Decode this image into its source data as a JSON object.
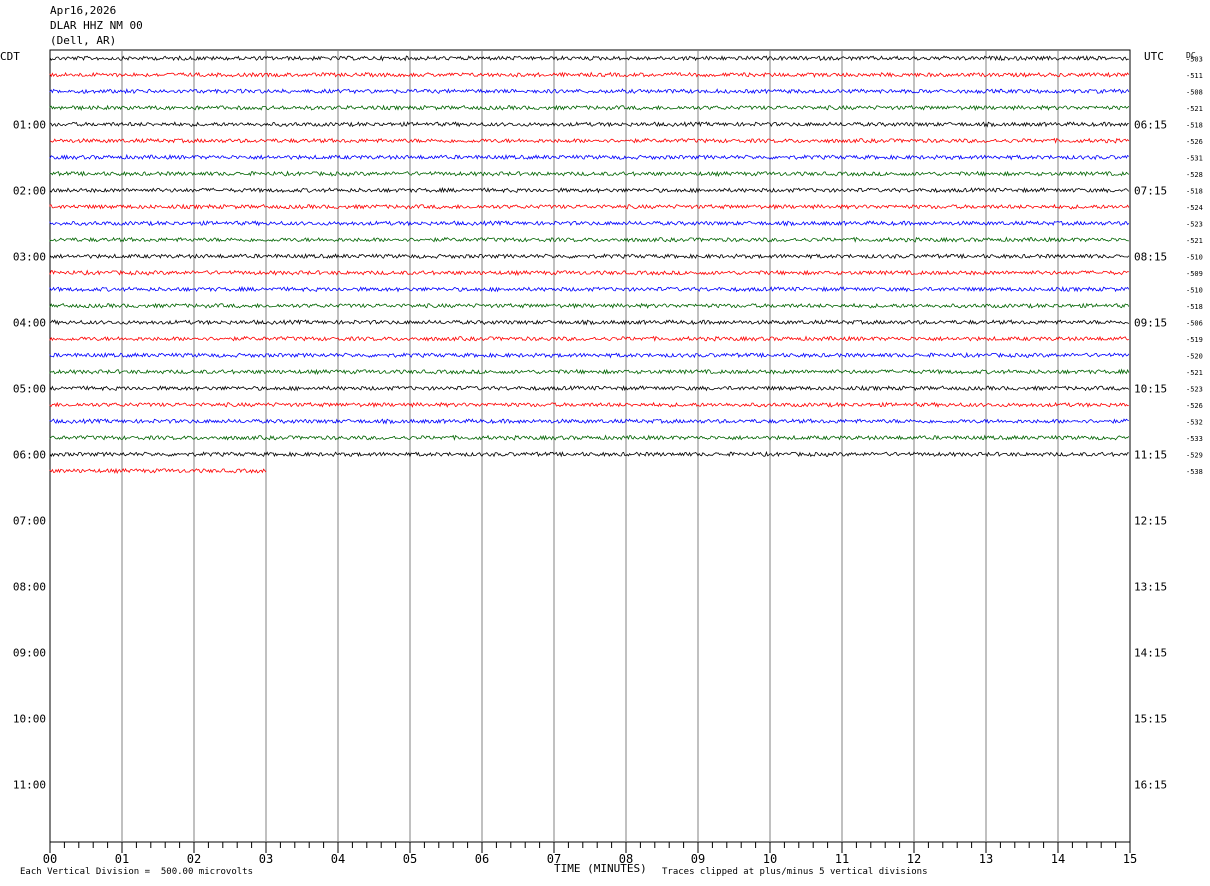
{
  "header": {
    "date": "Apr16,2026",
    "station": "DLAR HHZ NM 00",
    "location": "(Dell, AR)"
  },
  "chart_data": {
    "type": "line",
    "title": "",
    "left_timezone_label": "CDT",
    "right_timezone_label": "UTC",
    "dc_label": "DC",
    "left_hour_labels": [
      "01:00",
      "02:00",
      "03:00",
      "04:00",
      "05:00",
      "06:00",
      "07:00",
      "08:00",
      "09:00",
      "10:00",
      "11:00"
    ],
    "right_hour_labels": [
      "06:15",
      "07:15",
      "08:15",
      "09:15",
      "10:15",
      "11:15",
      "12:15",
      "13:15",
      "14:15",
      "15:15",
      "16:15"
    ],
    "x_ticks": [
      "00",
      "01",
      "02",
      "03",
      "04",
      "05",
      "06",
      "07",
      "08",
      "09",
      "10",
      "11",
      "12",
      "13",
      "14",
      "15"
    ],
    "xlabel": "TIME (MINUTES)",
    "xlim": [
      0,
      15
    ],
    "rows_total": 48,
    "trace_colors": [
      "#000000",
      "#ff0000",
      "#0000ff",
      "#006400"
    ],
    "dc_offsets": [
      "-503",
      "-511",
      "-508",
      "-521",
      "-518",
      "-526",
      "-531",
      "-528",
      "-518",
      "-524",
      "-523",
      "-521",
      "-510",
      "-509",
      "-510",
      "-518",
      "-506",
      "-519",
      "-520",
      "-521",
      "-523",
      "-526",
      "-532",
      "-533",
      "-529",
      "-538"
    ],
    "trace_durations_minutes": [
      15,
      15,
      15,
      15,
      15,
      15,
      15,
      15,
      15,
      15,
      15,
      15,
      15,
      15,
      15,
      15,
      15,
      15,
      15,
      15,
      15,
      15,
      15,
      15,
      15,
      3
    ],
    "footer_left": "Each Vertical Division =  500.00 microvolts",
    "footer_right": "Traces clipped at plus/minus 5 vertical divisions"
  }
}
